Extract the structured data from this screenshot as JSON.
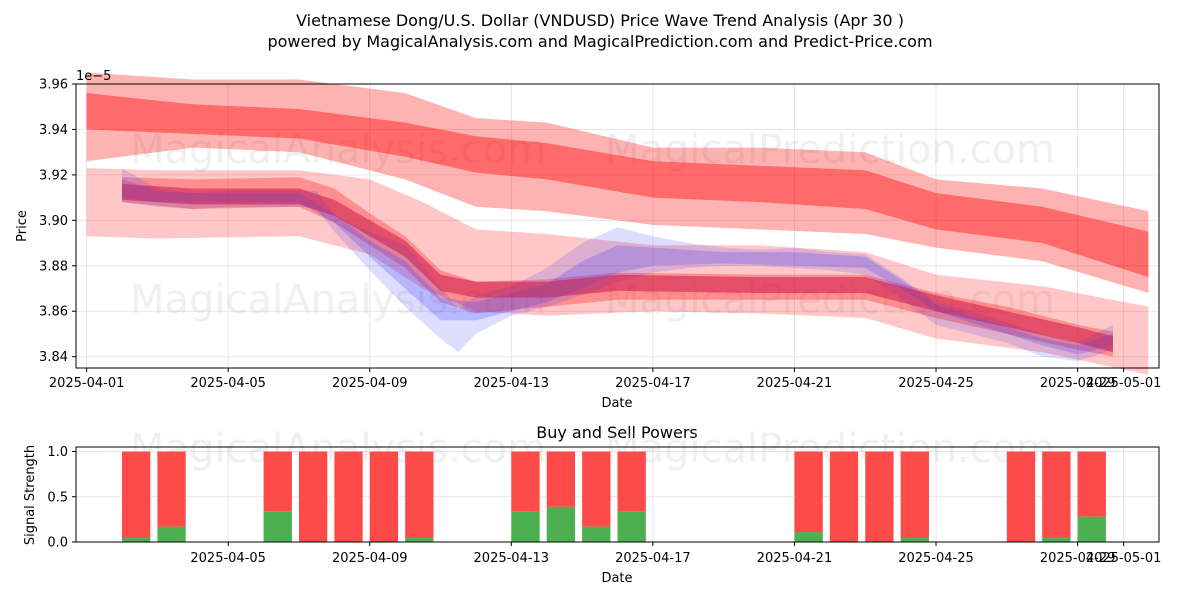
{
  "title_line1": "Vietnamese Dong/U.S. Dollar (VNDUSD) Price Wave Trend Analysis (Apr 30 )",
  "title_line2": "powered by MagicalAnalysis.com and MagicalPrediction.com and Predict-Price.com",
  "watermarks": [
    "MagicalAnalysis.com",
    "MagicalPrediction.com"
  ],
  "colors": {
    "red": "#ff0000",
    "blue": "#3333ff",
    "buy": "#4caf50",
    "sell": "#ff4a4a",
    "grid": "#e6e6e6"
  },
  "chart_data": [
    {
      "type": "area",
      "name": "price-wave",
      "title": "",
      "xlabel": "Date",
      "ylabel": "Price",
      "y_scale_label": "1e−5",
      "xlim": [
        -0.3,
        30.3
      ],
      "ylim": [
        3.835,
        3.96
      ],
      "x_ticks": [
        {
          "day": 0,
          "label": "2025-04-01"
        },
        {
          "day": 4,
          "label": "2025-04-05"
        },
        {
          "day": 8,
          "label": "2025-04-09"
        },
        {
          "day": 12,
          "label": "2025-04-13"
        },
        {
          "day": 16,
          "label": "2025-04-17"
        },
        {
          "day": 20,
          "label": "2025-04-21"
        },
        {
          "day": 24,
          "label": "2025-04-25"
        },
        {
          "day": 28,
          "label": "2025-04-29"
        },
        {
          "day": 29.3,
          "label": "2025-05-01"
        }
      ],
      "y_ticks": [
        "3.84",
        "3.86",
        "3.88",
        "3.90",
        "3.92",
        "3.94",
        "3.96"
      ],
      "red_upper_bands": [
        {
          "x": [
            0,
            3,
            6,
            9,
            11,
            13,
            16,
            19,
            22,
            24,
            27,
            30
          ],
          "low": [
            3.926,
            3.932,
            3.93,
            3.918,
            3.906,
            3.904,
            3.898,
            3.896,
            3.894,
            3.888,
            3.882,
            3.868
          ],
          "high": [
            3.965,
            3.962,
            3.962,
            3.956,
            3.945,
            3.943,
            3.932,
            3.932,
            3.93,
            3.918,
            3.914,
            3.904
          ]
        },
        {
          "x": [
            0,
            3,
            6,
            9,
            11,
            13,
            16,
            19,
            22,
            24,
            27,
            30
          ],
          "low": [
            3.94,
            3.938,
            3.936,
            3.928,
            3.921,
            3.918,
            3.91,
            3.908,
            3.905,
            3.896,
            3.89,
            3.875
          ],
          "high": [
            3.956,
            3.951,
            3.949,
            3.943,
            3.937,
            3.934,
            3.926,
            3.924,
            3.922,
            3.912,
            3.906,
            3.895
          ]
        }
      ],
      "red_lower_bands": [
        {
          "x": [
            0,
            2,
            6,
            8,
            9.5,
            11,
            13,
            16,
            19,
            22,
            24,
            27,
            30
          ],
          "low": [
            3.893,
            3.892,
            3.893,
            3.885,
            3.87,
            3.86,
            3.858,
            3.86,
            3.859,
            3.857,
            3.848,
            3.842,
            3.832
          ],
          "high": [
            3.923,
            3.922,
            3.922,
            3.918,
            3.908,
            3.896,
            3.894,
            3.889,
            3.889,
            3.886,
            3.876,
            3.871,
            3.862
          ]
        },
        {
          "x": [
            1,
            3,
            6,
            7,
            8,
            9,
            10,
            11,
            13,
            15,
            19,
            22,
            24,
            26,
            28,
            29
          ],
          "low": [
            3.908,
            3.905,
            3.906,
            3.899,
            3.889,
            3.879,
            3.864,
            3.859,
            3.862,
            3.865,
            3.865,
            3.865,
            3.857,
            3.85,
            3.843,
            3.84
          ],
          "high": [
            3.919,
            3.918,
            3.919,
            3.914,
            3.903,
            3.893,
            3.878,
            3.873,
            3.874,
            3.877,
            3.876,
            3.876,
            3.868,
            3.862,
            3.854,
            3.851
          ]
        },
        {
          "x": [
            1,
            3,
            6,
            7,
            8,
            9,
            10,
            11,
            13,
            15,
            19,
            22,
            24,
            26,
            28,
            29
          ],
          "low": [
            3.909,
            3.907,
            3.907,
            3.902,
            3.893,
            3.884,
            3.869,
            3.866,
            3.866,
            3.869,
            3.868,
            3.868,
            3.86,
            3.853,
            3.846,
            3.842
          ],
          "high": [
            3.916,
            3.914,
            3.914,
            3.909,
            3.9,
            3.891,
            3.876,
            3.873,
            3.873,
            3.876,
            3.875,
            3.875,
            3.867,
            3.86,
            3.853,
            3.849
          ]
        }
      ],
      "blue_bands": [
        {
          "x": [
            1,
            2,
            3,
            4,
            5,
            6,
            6.5,
            7,
            8,
            9,
            10,
            10.5,
            11,
            12,
            13,
            14,
            15,
            16,
            17,
            18,
            19,
            20,
            21,
            22,
            23,
            24,
            25,
            26,
            27,
            28,
            29
          ],
          "low": [
            3.908,
            3.906,
            3.905,
            3.906,
            3.906,
            3.906,
            3.905,
            3.895,
            3.878,
            3.862,
            3.848,
            3.842,
            3.85,
            3.858,
            3.862,
            3.867,
            3.873,
            3.877,
            3.879,
            3.88,
            3.88,
            3.879,
            3.878,
            3.876,
            3.866,
            3.854,
            3.85,
            3.846,
            3.84,
            3.838,
            3.843
          ],
          "high": [
            3.923,
            3.914,
            3.912,
            3.913,
            3.913,
            3.913,
            3.913,
            3.902,
            3.895,
            3.889,
            3.871,
            3.861,
            3.867,
            3.871,
            3.879,
            3.89,
            3.897,
            3.893,
            3.89,
            3.888,
            3.887,
            3.888,
            3.886,
            3.885,
            3.875,
            3.864,
            3.86,
            3.855,
            3.85,
            3.846,
            3.854
          ]
        },
        {
          "x": [
            1,
            2,
            3,
            4,
            5,
            6,
            7,
            8,
            9,
            10,
            11,
            12,
            13,
            14,
            15,
            16,
            18,
            20,
            22,
            23,
            24,
            25,
            26,
            27,
            28,
            29
          ],
          "low": [
            3.91,
            3.908,
            3.908,
            3.908,
            3.908,
            3.908,
            3.899,
            3.884,
            3.87,
            3.856,
            3.856,
            3.86,
            3.864,
            3.87,
            3.877,
            3.88,
            3.881,
            3.88,
            3.879,
            3.87,
            3.86,
            3.855,
            3.85,
            3.845,
            3.841,
            3.845
          ],
          "high": [
            3.918,
            3.913,
            3.912,
            3.912,
            3.912,
            3.912,
            3.903,
            3.891,
            3.882,
            3.866,
            3.864,
            3.868,
            3.872,
            3.882,
            3.889,
            3.888,
            3.886,
            3.886,
            3.884,
            3.874,
            3.863,
            3.858,
            3.853,
            3.848,
            3.845,
            3.85
          ]
        }
      ]
    },
    {
      "type": "bar",
      "name": "buy-sell-powers",
      "title": "Buy and Sell Powers",
      "xlabel": "Date",
      "ylabel": "Signal Strength",
      "xlim": [
        -0.3,
        30.3
      ],
      "ylim": [
        0,
        1.05
      ],
      "y_ticks": [
        "0.0",
        "0.5",
        "1.0"
      ],
      "x_ticks": [
        {
          "day": 4,
          "label": "2025-04-05"
        },
        {
          "day": 8,
          "label": "2025-04-09"
        },
        {
          "day": 12,
          "label": "2025-04-13"
        },
        {
          "day": 16,
          "label": "2025-04-17"
        },
        {
          "day": 20,
          "label": "2025-04-21"
        },
        {
          "day": 24,
          "label": "2025-04-25"
        },
        {
          "day": 28,
          "label": "2025-04-29"
        },
        {
          "day": 29.3,
          "label": "2025-05-01"
        }
      ],
      "days": [
        1.4,
        2.4,
        5.4,
        6.4,
        7.4,
        8.4,
        9.4,
        12.4,
        13.4,
        14.4,
        15.4,
        20.4,
        21.4,
        22.4,
        23.4,
        26.4,
        27.4,
        28.4
      ],
      "buy": [
        0.05,
        0.17,
        0.34,
        0.0,
        0.0,
        0.0,
        0.05,
        0.34,
        0.39,
        0.17,
        0.34,
        0.11,
        0.0,
        0.0,
        0.05,
        0.0,
        0.05,
        0.28
      ],
      "sell": [
        0.95,
        0.83,
        0.66,
        1.0,
        1.0,
        1.0,
        0.95,
        0.66,
        0.61,
        0.83,
        0.66,
        0.89,
        1.0,
        1.0,
        0.95,
        1.0,
        0.95,
        0.72
      ]
    }
  ]
}
